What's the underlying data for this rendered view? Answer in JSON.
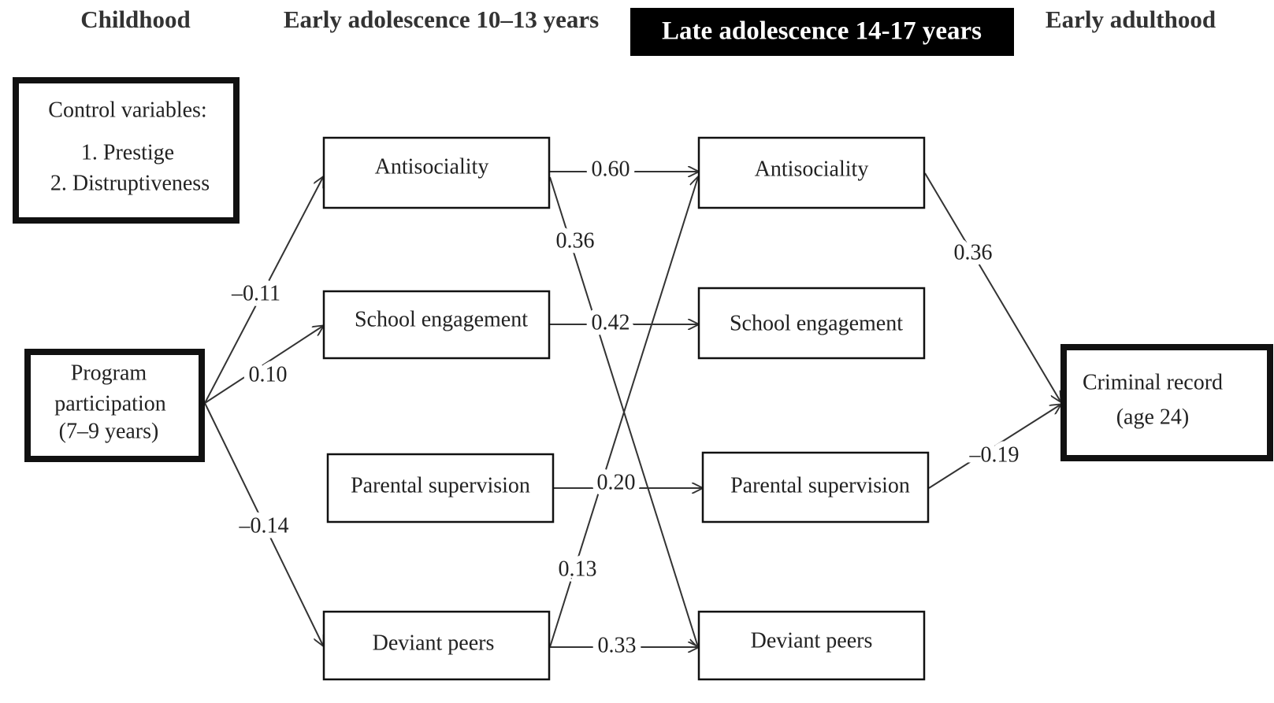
{
  "headers": [
    "Childhood",
    "Early adolescence 10–13 years",
    "Late adolescence 14-17 years",
    "Early adulthood"
  ],
  "control": {
    "title": "Control variables:",
    "items": [
      "1. Prestige",
      "2. Distruptiveness"
    ]
  },
  "nodes": [
    {
      "id": "program",
      "lines": [
        "Program",
        "participation",
        "(7–9 years)"
      ]
    },
    {
      "id": "early-antisociality",
      "lines": [
        "Antisociality"
      ]
    },
    {
      "id": "early-school",
      "lines": [
        "School engagement"
      ]
    },
    {
      "id": "early-parental",
      "lines": [
        "Parental supervision"
      ]
    },
    {
      "id": "early-deviant",
      "lines": [
        "Deviant peers"
      ]
    },
    {
      "id": "late-antisociality",
      "lines": [
        "Antisociality"
      ]
    },
    {
      "id": "late-school",
      "lines": [
        "School engagement"
      ]
    },
    {
      "id": "late-parental",
      "lines": [
        "Parental supervision"
      ]
    },
    {
      "id": "late-deviant",
      "lines": [
        "Deviant peers"
      ]
    },
    {
      "id": "criminal",
      "lines": [
        "Criminal record",
        "(age 24)"
      ]
    }
  ],
  "edges": [
    {
      "label": "–0.11"
    },
    {
      "label": "0.10"
    },
    {
      "label": "–0.14"
    },
    {
      "label": "0.60"
    },
    {
      "label": "0.42"
    },
    {
      "label": "0.20"
    },
    {
      "label": "0.33"
    },
    {
      "label": "0.36"
    },
    {
      "label": "0.13"
    },
    {
      "label": "0.36"
    },
    {
      "label": "–0.19"
    }
  ]
}
